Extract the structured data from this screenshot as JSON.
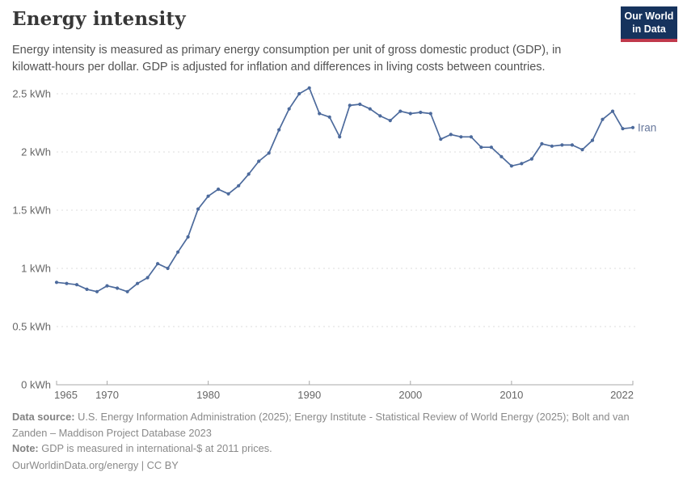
{
  "header": {
    "title": "Energy intensity",
    "subtitle": "Energy intensity is measured as primary energy consumption per unit of gross domestic product (GDP), in kilowatt-hours per dollar. GDP is adjusted for inflation and differences in living costs between countries."
  },
  "logo": {
    "line1": "Our World",
    "line2": "in Data"
  },
  "chart_data": {
    "type": "line",
    "title": "Energy intensity",
    "unit": "kWh",
    "xlabel": "",
    "ylabel": "",
    "xlim": [
      1965,
      2022
    ],
    "ylim": [
      0,
      2.5
    ],
    "grid": true,
    "legend_position": "end-of-line",
    "xticks": [
      1965,
      1970,
      1980,
      1990,
      2000,
      2010,
      2022
    ],
    "xtick_labels": [
      "1965",
      "1970",
      "1980",
      "1990",
      "2000",
      "2010",
      "2022"
    ],
    "yticks": [
      0,
      0.5,
      1,
      1.5,
      2,
      2.5
    ],
    "ytick_labels": [
      "0 kWh",
      "0.5 kWh",
      "1 kWh",
      "1.5 kWh",
      "2 kWh",
      "2.5 kWh"
    ],
    "series": [
      {
        "name": "Iran",
        "x": [
          1965,
          1966,
          1967,
          1968,
          1969,
          1970,
          1971,
          1972,
          1973,
          1974,
          1975,
          1976,
          1977,
          1978,
          1979,
          1980,
          1981,
          1982,
          1983,
          1984,
          1985,
          1986,
          1987,
          1988,
          1989,
          1990,
          1991,
          1992,
          1993,
          1994,
          1995,
          1996,
          1997,
          1998,
          1999,
          2000,
          2001,
          2002,
          2003,
          2004,
          2005,
          2006,
          2007,
          2008,
          2009,
          2010,
          2011,
          2012,
          2013,
          2014,
          2015,
          2016,
          2017,
          2018,
          2019,
          2020,
          2021,
          2022
        ],
        "values": [
          0.88,
          0.87,
          0.86,
          0.82,
          0.8,
          0.85,
          0.83,
          0.8,
          0.87,
          0.92,
          1.04,
          1.0,
          1.14,
          1.27,
          1.51,
          1.62,
          1.68,
          1.64,
          1.71,
          1.81,
          1.92,
          1.99,
          2.19,
          2.37,
          2.5,
          2.55,
          2.33,
          2.3,
          2.13,
          2.4,
          2.41,
          2.37,
          2.31,
          2.27,
          2.35,
          2.33,
          2.34,
          2.33,
          2.11,
          2.15,
          2.13,
          2.13,
          2.04,
          2.04,
          1.96,
          1.88,
          1.9,
          1.94,
          2.07,
          2.05,
          2.06,
          2.06,
          2.02,
          2.1,
          2.28,
          2.35,
          2.2,
          2.21
        ]
      }
    ],
    "colors": {
      "line": "#4C6A9C",
      "entity_label": "#66779b",
      "grid": "#dedede",
      "axis": "#a8a8a8",
      "tick_text": "#666666"
    }
  },
  "footer": {
    "data_source_label": "Data source:",
    "data_source_text": " U.S. Energy Information Administration (2025); Energy Institute - Statistical Review of World Energy (2025); Bolt and van Zanden – Maddison Project Database 2023",
    "note_label": "Note:",
    "note_text": " GDP is measured in international-$ at 2011 prices.",
    "credit": "OurWorldinData.org/energy | CC BY"
  }
}
